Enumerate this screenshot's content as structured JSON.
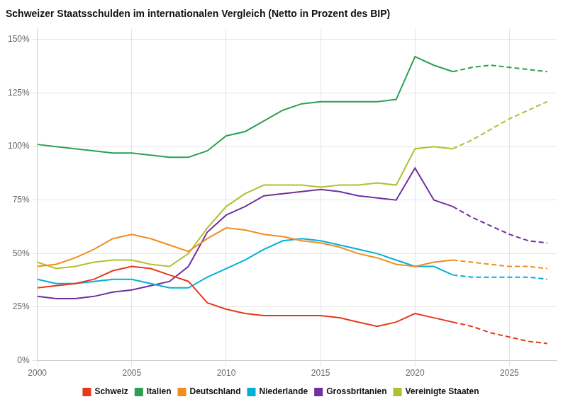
{
  "chart_data": {
    "type": "line",
    "title": "Schweizer Staatsschulden im internationalen Vergleich (Netto in Prozent des BIP)",
    "x": [
      2000,
      2001,
      2002,
      2003,
      2004,
      2005,
      2006,
      2007,
      2008,
      2009,
      2010,
      2011,
      2012,
      2013,
      2014,
      2015,
      2016,
      2017,
      2018,
      2019,
      2020,
      2021,
      2022,
      2023,
      2024,
      2025,
      2026,
      2027
    ],
    "xlim": [
      2000,
      2027.5
    ],
    "xticks": [
      2000,
      2005,
      2010,
      2015,
      2020,
      2025
    ],
    "ylim": [
      0,
      155
    ],
    "yticks": [
      {
        "value": 0,
        "label": "0%"
      },
      {
        "value": 25,
        "label": "25%"
      },
      {
        "value": 50,
        "label": "50%"
      },
      {
        "value": 75,
        "label": "75%"
      },
      {
        "value": 100,
        "label": "100%"
      },
      {
        "value": 125,
        "label": "125%"
      },
      {
        "value": 150,
        "label": "150%"
      }
    ],
    "grid": true,
    "legend": "bottom",
    "series": [
      {
        "name": "Schweiz",
        "color": "#e8381a",
        "values": [
          34,
          35,
          36,
          38,
          42,
          44,
          43,
          40,
          37,
          27,
          24,
          22,
          21,
          21,
          21,
          21,
          20,
          18,
          16,
          18,
          22,
          20,
          18,
          null,
          null,
          null,
          null,
          null
        ],
        "dashed_values": [
          null,
          null,
          null,
          null,
          null,
          null,
          null,
          null,
          null,
          null,
          null,
          null,
          null,
          null,
          null,
          null,
          null,
          null,
          null,
          null,
          null,
          null,
          18,
          16,
          13,
          11,
          9,
          8
        ]
      },
      {
        "name": "Italien",
        "color": "#2ca050",
        "values": [
          101,
          100,
          99,
          98,
          97,
          97,
          96,
          95,
          95,
          98,
          105,
          107,
          112,
          117,
          120,
          121,
          121,
          121,
          121,
          122,
          142,
          138,
          135,
          null,
          null,
          null,
          null,
          null
        ],
        "dashed_values": [
          null,
          null,
          null,
          null,
          null,
          null,
          null,
          null,
          null,
          null,
          null,
          null,
          null,
          null,
          null,
          null,
          null,
          null,
          null,
          null,
          null,
          null,
          135,
          137,
          138,
          137,
          136,
          135
        ]
      },
      {
        "name": "Deutschland",
        "color": "#f28c1e",
        "values": [
          44,
          45,
          48,
          52,
          57,
          59,
          57,
          54,
          51,
          57,
          62,
          61,
          59,
          58,
          56,
          55,
          53,
          50,
          48,
          45,
          44,
          46,
          47,
          null,
          null,
          null,
          null,
          null
        ],
        "dashed_values": [
          null,
          null,
          null,
          null,
          null,
          null,
          null,
          null,
          null,
          null,
          null,
          null,
          null,
          null,
          null,
          null,
          null,
          null,
          null,
          null,
          null,
          null,
          47,
          46,
          45,
          44,
          44,
          43
        ]
      },
      {
        "name": "Niederlande",
        "color": "#00b0d8",
        "values": [
          38,
          36,
          36,
          37,
          38,
          38,
          36,
          34,
          34,
          39,
          43,
          47,
          52,
          56,
          57,
          56,
          54,
          52,
          50,
          47,
          44,
          44,
          40,
          null,
          null,
          null,
          null,
          null
        ],
        "dashed_values": [
          null,
          null,
          null,
          null,
          null,
          null,
          null,
          null,
          null,
          null,
          null,
          null,
          null,
          null,
          null,
          null,
          null,
          null,
          null,
          null,
          null,
          null,
          40,
          39,
          39,
          39,
          39,
          38
        ]
      },
      {
        "name": "Grossbritanien",
        "color": "#7030a0",
        "values": [
          30,
          29,
          29,
          30,
          32,
          33,
          35,
          37,
          44,
          60,
          68,
          72,
          77,
          78,
          79,
          80,
          79,
          77,
          76,
          75,
          90,
          75,
          72,
          null,
          null,
          null,
          null,
          null
        ],
        "dashed_values": [
          null,
          null,
          null,
          null,
          null,
          null,
          null,
          null,
          null,
          null,
          null,
          null,
          null,
          null,
          null,
          null,
          null,
          null,
          null,
          null,
          null,
          null,
          72,
          67,
          63,
          59,
          56,
          55
        ]
      },
      {
        "name": "Vereinigte Staaten",
        "color": "#b0c030",
        "values": [
          46,
          43,
          44,
          46,
          47,
          47,
          45,
          44,
          50,
          62,
          72,
          78,
          82,
          82,
          82,
          81,
          82,
          82,
          83,
          82,
          99,
          100,
          99,
          null,
          null,
          null,
          null,
          null
        ],
        "dashed_values": [
          null,
          null,
          null,
          null,
          null,
          null,
          null,
          null,
          null,
          null,
          null,
          null,
          null,
          null,
          null,
          null,
          null,
          null,
          null,
          null,
          null,
          null,
          99,
          103,
          108,
          113,
          117,
          121
        ]
      }
    ]
  }
}
